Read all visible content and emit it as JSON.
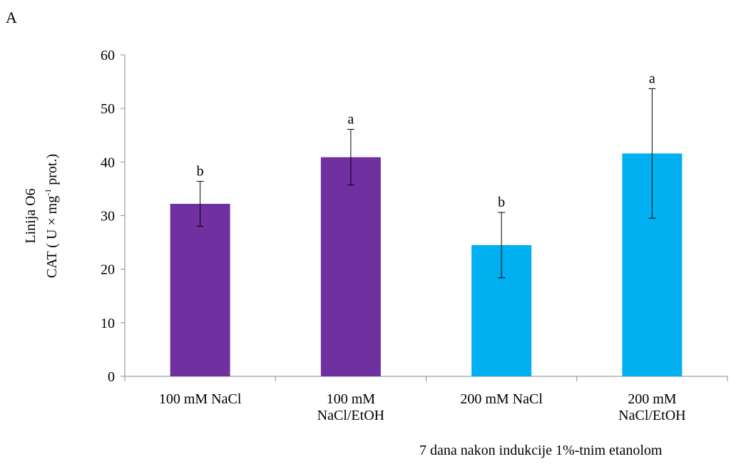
{
  "panel_label": "A",
  "caption": "7 dana nakon indukcije 1%-tnim etanolom",
  "colors": {
    "purple": "#7030a0",
    "blue": "#00b0f0",
    "axis": "#888888"
  },
  "chart_data": {
    "type": "bar",
    "ylabel_line1": "Linija O6",
    "ylabel_line2_pre": "CAT ( U × mg",
    "ylabel_sup": "-1",
    "ylabel_line2_post": " prot.)",
    "ylim": [
      0,
      60
    ],
    "yticks": [
      0,
      10,
      20,
      30,
      40,
      50,
      60
    ],
    "categories": [
      [
        "100 mM NaCl"
      ],
      [
        "100 mM",
        "NaCl/EtOH"
      ],
      [
        "200 mM NaCl"
      ],
      [
        "200 mM",
        "NaCl/EtOH"
      ]
    ],
    "values": [
      32.2,
      40.9,
      24.5,
      41.6
    ],
    "errors": [
      4.2,
      5.2,
      6.1,
      12.1
    ],
    "significance": [
      "b",
      "a",
      "b",
      "a"
    ],
    "bar_colors": [
      "#7030a0",
      "#7030a0",
      "#00b0f0",
      "#00b0f0"
    ],
    "grid": false,
    "legend": "none"
  }
}
